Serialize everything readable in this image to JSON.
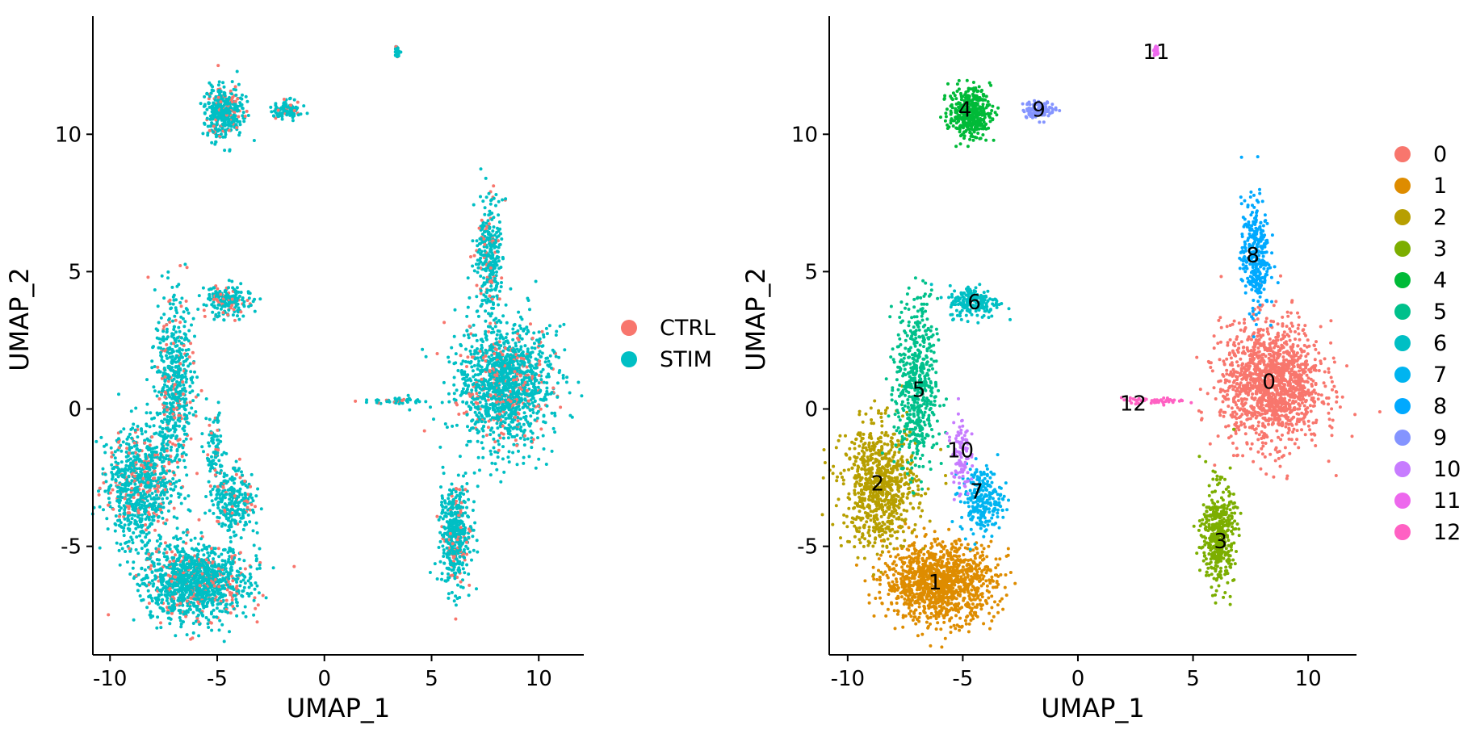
{
  "chart_data": [
    {
      "type": "scatter",
      "xlabel": "UMAP_1",
      "ylabel": "UMAP_2",
      "xlim": [
        -10.8,
        12.1
      ],
      "ylim": [
        -8.95,
        14.3
      ],
      "xticks": [
        -10,
        -5,
        0,
        5,
        10
      ],
      "yticks": [
        -5,
        0,
        5,
        10
      ],
      "xtick_labels": [
        "-10",
        "-5",
        "0",
        "5",
        "10"
      ],
      "ytick_labels": [
        "-5",
        "0",
        "5",
        "10"
      ],
      "legend_position": "right",
      "series": [
        {
          "name": "CTRL",
          "color": "#F8766D",
          "share": 0.15
        },
        {
          "name": "STIM",
          "color": "#00BFC4",
          "share": 0.85
        }
      ],
      "regions": [
        {
          "id": "0",
          "cx": 8.4,
          "cy": 0.9,
          "sx": 1.1,
          "sy": 1.1,
          "n": 1400
        },
        {
          "id": "1",
          "cx": -6.0,
          "cy": -6.3,
          "sx": 1.2,
          "sy": 0.7,
          "n": 1200
        },
        {
          "id": "2",
          "cx": -8.6,
          "cy": -2.8,
          "sx": 0.8,
          "sy": 1.1,
          "n": 800
        },
        {
          "id": "3",
          "cx": 6.1,
          "cy": -4.6,
          "sx": 0.35,
          "sy": 0.9,
          "n": 450
        },
        {
          "id": "4",
          "cx": -4.7,
          "cy": 10.8,
          "sx": 0.45,
          "sy": 0.45,
          "n": 400
        },
        {
          "id": "5",
          "cx": -7.0,
          "cy": 0.8,
          "sx": 0.45,
          "sy": 1.6,
          "n": 550
        },
        {
          "id": "6",
          "cx": -4.5,
          "cy": 3.9,
          "sx": 0.55,
          "sy": 0.3,
          "n": 200
        },
        {
          "id": "7",
          "cx": -4.2,
          "cy": -3.3,
          "sx": 0.45,
          "sy": 0.6,
          "n": 250
        },
        {
          "id": "8",
          "cx": 7.7,
          "cy": 5.6,
          "sx": 0.3,
          "sy": 1.0,
          "n": 320
        },
        {
          "id": "9",
          "cx": -1.7,
          "cy": 10.9,
          "sx": 0.35,
          "sy": 0.15,
          "n": 120
        },
        {
          "id": "10",
          "cx": -5.1,
          "cy": -1.6,
          "sx": 0.2,
          "sy": 0.8,
          "n": 100
        },
        {
          "id": "11",
          "cx": 3.4,
          "cy": 13.0,
          "sx": 0.06,
          "sy": 0.1,
          "n": 25
        },
        {
          "id": "12",
          "cx": 3.3,
          "cy": 0.3,
          "sx": 0.7,
          "sy": 0.05,
          "n": 45
        }
      ]
    },
    {
      "type": "scatter",
      "xlabel": "UMAP_1",
      "ylabel": "UMAP_2",
      "xlim": [
        -10.8,
        12.1
      ],
      "ylim": [
        -8.95,
        14.3
      ],
      "xticks": [
        -10,
        -5,
        0,
        5,
        10
      ],
      "yticks": [
        -5,
        0,
        5,
        10
      ],
      "xtick_labels": [
        "-10",
        "-5",
        "0",
        "5",
        "10"
      ],
      "ytick_labels": [
        "-5",
        "0",
        "5",
        "10"
      ],
      "legend_position": "right",
      "series": [
        {
          "name": "0",
          "color": "#F8766D",
          "cx": 8.4,
          "cy": 0.9,
          "sx": 1.1,
          "sy": 1.1,
          "n": 1400,
          "label_at": [
            8.3,
            1.0
          ]
        },
        {
          "name": "1",
          "color": "#DE8C00",
          "cx": -6.0,
          "cy": -6.3,
          "sx": 1.2,
          "sy": 0.7,
          "n": 1200,
          "label_at": [
            -6.2,
            -6.3
          ]
        },
        {
          "name": "2",
          "color": "#B79F00",
          "cx": -8.6,
          "cy": -2.8,
          "sx": 0.8,
          "sy": 1.1,
          "n": 800,
          "label_at": [
            -8.7,
            -2.7
          ]
        },
        {
          "name": "3",
          "color": "#7CAE00",
          "cx": 6.1,
          "cy": -4.6,
          "sx": 0.35,
          "sy": 0.9,
          "n": 450,
          "label_at": [
            6.2,
            -4.8
          ]
        },
        {
          "name": "4",
          "color": "#00BA38",
          "cx": -4.7,
          "cy": 10.8,
          "sx": 0.45,
          "sy": 0.45,
          "n": 400,
          "label_at": [
            -4.9,
            10.9
          ]
        },
        {
          "name": "5",
          "color": "#00C08B",
          "cx": -7.0,
          "cy": 0.8,
          "sx": 0.45,
          "sy": 1.6,
          "n": 550,
          "label_at": [
            -6.9,
            0.7
          ]
        },
        {
          "name": "6",
          "color": "#00BFC4",
          "cx": -4.5,
          "cy": 3.9,
          "sx": 0.55,
          "sy": 0.3,
          "n": 200,
          "label_at": [
            -4.5,
            3.9
          ]
        },
        {
          "name": "7",
          "color": "#00B4F0",
          "cx": -4.2,
          "cy": -3.3,
          "sx": 0.45,
          "sy": 0.6,
          "n": 250,
          "label_at": [
            -4.4,
            -3.0
          ]
        },
        {
          "name": "8",
          "color": "#00A9FF",
          "cx": 7.7,
          "cy": 5.6,
          "sx": 0.3,
          "sy": 1.0,
          "n": 320,
          "label_at": [
            7.6,
            5.6
          ]
        },
        {
          "name": "9",
          "color": "#8494FF",
          "cx": -1.7,
          "cy": 10.9,
          "sx": 0.35,
          "sy": 0.15,
          "n": 120,
          "label_at": [
            -1.7,
            10.9
          ]
        },
        {
          "name": "10",
          "color": "#C77CFF",
          "cx": -5.1,
          "cy": -1.6,
          "sx": 0.2,
          "sy": 0.8,
          "n": 100,
          "label_at": [
            -5.1,
            -1.5
          ]
        },
        {
          "name": "11",
          "color": "#ED68ED",
          "cx": 3.4,
          "cy": 13.0,
          "sx": 0.06,
          "sy": 0.1,
          "n": 25,
          "label_at": [
            3.4,
            13.0
          ]
        },
        {
          "name": "12",
          "color": "#FF61C3",
          "cx": 3.3,
          "cy": 0.3,
          "sx": 0.7,
          "sy": 0.05,
          "n": 45,
          "label_at": [
            2.4,
            0.2
          ]
        }
      ]
    }
  ]
}
